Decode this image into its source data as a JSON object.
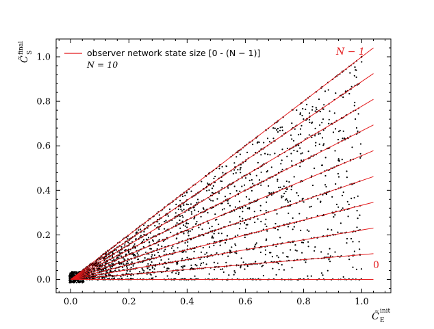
{
  "chart_data": {
    "type": "scatter",
    "xlabel_main": "C̃",
    "xlabel_sub": "E",
    "xlabel_sup": "init",
    "ylabel_main": "C̃",
    "ylabel_sub": "S",
    "ylabel_sup": "final",
    "xlim": [
      -0.05,
      1.1
    ],
    "ylim": [
      -0.06,
      1.08
    ],
    "x_ticks": [
      0.0,
      0.2,
      0.4,
      0.6,
      0.8,
      1.0
    ],
    "x_tick_labels": [
      "0.0",
      "0.2",
      "0.4",
      "0.6",
      "0.8",
      "1.0"
    ],
    "y_ticks": [
      0.0,
      0.2,
      0.4,
      0.6,
      0.8,
      1.0
    ],
    "y_tick_labels": [
      "0.0",
      "0.2",
      "0.4",
      "0.6",
      "0.8",
      "1.0"
    ],
    "grid": false,
    "legend": {
      "placement": "top-left",
      "entry_label": "observer network state size [0 - (N − 1)]",
      "subtitle": "N = 10"
    },
    "lines": {
      "color": "#e41a1c",
      "x_range": [
        0.0,
        1.04
      ],
      "slopes": [
        0.0,
        0.111,
        0.222,
        0.333,
        0.444,
        0.556,
        0.667,
        0.778,
        0.889,
        1.0
      ],
      "labels": [
        "0",
        "N − 1"
      ]
    },
    "scatter": {
      "color": "#000000",
      "description_points": "dense black points lying along and between the red lines, concentrated near origin",
      "seed": 7,
      "count_on_lines": 1800,
      "count_between": 1100
    }
  }
}
